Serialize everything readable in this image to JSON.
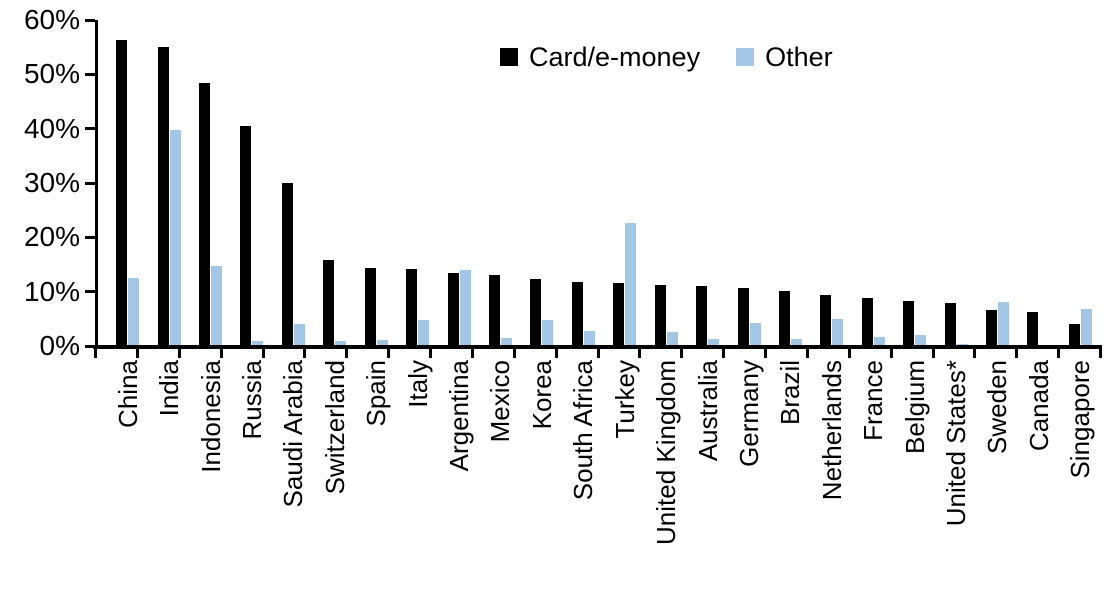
{
  "chart_data": {
    "type": "bar",
    "title": "",
    "xlabel": "",
    "ylabel": "",
    "ylim": [
      0,
      60
    ],
    "ytick_step": 10,
    "ytick_labels": [
      "0%",
      "10%",
      "20%",
      "30%",
      "40%",
      "50%",
      "60%"
    ],
    "grid": false,
    "legend_position": "top-center",
    "categories": [
      "China",
      "India",
      "Indonesia",
      "Russia",
      "Saudi Arabia",
      "Switzerland",
      "Spain",
      "Italy",
      "Argentina",
      "Mexico",
      "Korea",
      "South Africa",
      "Turkey",
      "United Kingdom",
      "Australia",
      "Germany",
      "Brazil",
      "Netherlands",
      "France",
      "Belgium",
      "United States*",
      "Sweden",
      "Canada",
      "Singapore"
    ],
    "series": [
      {
        "name": "Card/e-money",
        "color": "#000000",
        "values": [
          56.3,
          55.0,
          48.3,
          40.5,
          29.9,
          15.6,
          14.2,
          14.1,
          13.3,
          12.9,
          12.2,
          11.7,
          11.5,
          11.1,
          10.8,
          10.5,
          10.0,
          9.2,
          8.6,
          8.1,
          7.8,
          6.5,
          6.0,
          3.8
        ]
      },
      {
        "name": "Other",
        "color": "#A3C6E4",
        "values": [
          12.3,
          39.7,
          14.6,
          0.8,
          3.9,
          0.7,
          1.0,
          4.6,
          13.8,
          1.2,
          4.6,
          2.5,
          22.5,
          2.4,
          1.1,
          4.0,
          1.1,
          4.8,
          1.4,
          1.9,
          0.2,
          8.0,
          0.0,
          6.6
        ]
      }
    ]
  }
}
